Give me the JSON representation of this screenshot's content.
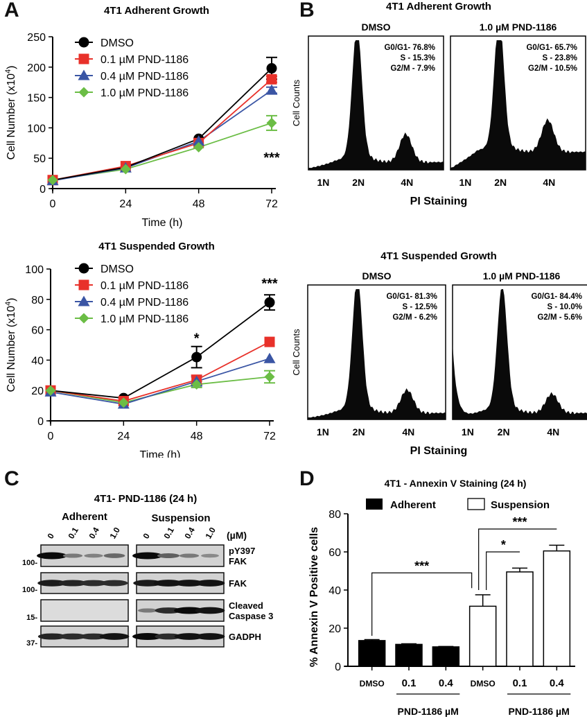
{
  "panels": {
    "A": {
      "letter": "A"
    },
    "B": {
      "letter": "B"
    },
    "C": {
      "letter": "C"
    },
    "D": {
      "letter": "D"
    }
  },
  "chart_data": [
    {
      "id": "A-adherent",
      "type": "line",
      "title": "4T1 Adherent Growth",
      "xlabel": "Time (h)",
      "ylabel": "Cell Number (x10^4)",
      "ylabel_base": "Cell Number (x10",
      "ylabel_exp": "4",
      "ylabel_close": ")",
      "x": [
        0,
        24,
        48,
        72
      ],
      "xticks": [
        "0",
        "24",
        "48",
        "72"
      ],
      "yticks": [
        0,
        50,
        100,
        150,
        200,
        250
      ],
      "ylim": [
        0,
        250
      ],
      "xlim": [
        0,
        72
      ],
      "legend_position": "top-left",
      "series": [
        {
          "name": "DMSO",
          "color": "#000000",
          "marker": "circle",
          "values": [
            14,
            35,
            82,
            198
          ],
          "errors": [
            0,
            0,
            0,
            18
          ]
        },
        {
          "name": "0.1 µM PND-1186",
          "color": "#e8312a",
          "marker": "square",
          "values": [
            14,
            37,
            75,
            180
          ],
          "errors": [
            0,
            0,
            0,
            5
          ]
        },
        {
          "name": "0.4 µM PND-1186",
          "color": "#3a55a4",
          "marker": "triangle",
          "values": [
            13,
            34,
            78,
            162
          ],
          "errors": [
            0,
            0,
            0,
            5
          ]
        },
        {
          "name": "1.0 µM PND-1186",
          "color": "#6bbd45",
          "marker": "diamond",
          "values": [
            14,
            32,
            68,
            108
          ],
          "errors": [
            0,
            0,
            0,
            12
          ]
        }
      ],
      "annotations": [
        {
          "x": 72,
          "text": "***",
          "y": 55
        }
      ]
    },
    {
      "id": "A-suspended",
      "type": "line",
      "title": "4T1 Suspended Growth",
      "xlabel": "Time (h)",
      "ylabel": "Cell Number (x10^4)",
      "ylabel_base": "Cell Number (x10",
      "ylabel_exp": "4",
      "ylabel_close": ")",
      "x": [
        0,
        24,
        48,
        72
      ],
      "xticks": [
        "0",
        "24",
        "48",
        "72"
      ],
      "yticks": [
        0,
        20,
        40,
        60,
        80,
        100
      ],
      "ylim": [
        0,
        100
      ],
      "xlim": [
        0,
        72
      ],
      "legend_position": "top-left",
      "series": [
        {
          "name": "DMSO",
          "color": "#000000",
          "marker": "circle",
          "values": [
            20,
            15,
            42,
            78
          ],
          "errors": [
            0,
            0,
            7,
            5
          ]
        },
        {
          "name": "0.1 µM PND-1186",
          "color": "#e8312a",
          "marker": "square",
          "values": [
            20,
            13,
            27,
            52
          ],
          "errors": [
            0,
            0,
            3,
            0
          ]
        },
        {
          "name": "0.4 µM PND-1186",
          "color": "#3a55a4",
          "marker": "triangle",
          "values": [
            19,
            11,
            26,
            41
          ],
          "errors": [
            0,
            0,
            3,
            0
          ]
        },
        {
          "name": "1.0 µM PND-1186",
          "color": "#6bbd45",
          "marker": "diamond",
          "values": [
            20,
            12,
            24,
            29
          ],
          "errors": [
            0,
            0,
            2,
            4
          ]
        }
      ],
      "annotations": [
        {
          "x": 48,
          "text": "*",
          "y": 56
        },
        {
          "x": 72,
          "text": "***",
          "y": 92
        }
      ]
    },
    {
      "id": "B-adherent",
      "type": "area",
      "title": "4T1 Adherent Growth",
      "xlabel": "PI Staining",
      "ylabel": "Cell Counts",
      "xticks": [
        "1N",
        "2N",
        "4N"
      ],
      "histograms": [
        {
          "label": "DMSO",
          "stats": [
            "G0/G1- 76.8%",
            "S - 15.3%",
            "G2/M -  7.9%"
          ],
          "g0g1": 76.8,
          "s": 15.3,
          "g2m": 7.9,
          "peak2N": 1.0,
          "peak4N": 0.22,
          "baseline": 0.05,
          "low1N": 0.0
        },
        {
          "label": "1.0 µM PND-1186",
          "stats": [
            "G0/G1- 65.7%",
            "S - 23.8%",
            "G2/M - 10.5%"
          ],
          "g0g1": 65.7,
          "s": 23.8,
          "g2m": 10.5,
          "peak2N": 1.0,
          "peak4N": 0.25,
          "baseline": 0.13,
          "low1N": 0.0
        }
      ]
    },
    {
      "id": "B-suspended",
      "type": "area",
      "title": "4T1 Suspended Growth",
      "xlabel": "PI Staining",
      "ylabel": "Cell Counts",
      "xticks": [
        "1N",
        "2N",
        "4N"
      ],
      "histograms": [
        {
          "label": "DMSO",
          "stats": [
            "G0/G1- 81.3%",
            "S - 12.5%",
            "G2/M -  6.2%"
          ],
          "g0g1": 81.3,
          "s": 12.5,
          "g2m": 6.2,
          "peak2N": 1.0,
          "peak4N": 0.18,
          "baseline": 0.04,
          "low1N": 0.0
        },
        {
          "label": "1.0 µM PND-1186",
          "stats": [
            "G0/G1- 84.4%",
            "S - 10.0%",
            "G2/M -  5.6%"
          ],
          "g0g1": 84.4,
          "s": 10.0,
          "g2m": 5.6,
          "peak2N": 0.93,
          "peak4N": 0.15,
          "baseline": 0.04,
          "low1N": 0.58
        }
      ]
    },
    {
      "id": "D",
      "type": "bar",
      "title": "4T1 - Annexin V Staining (24 h)",
      "ylabel": "% Annexin V Positive cells",
      "ylim": [
        0,
        80
      ],
      "yticks": [
        0,
        20,
        40,
        60,
        80
      ],
      "legend_position": "top",
      "legend": [
        {
          "name": "Adherent",
          "fill": "#000000"
        },
        {
          "name": "Suspension",
          "fill": "#ffffff"
        }
      ],
      "categories": [
        "DMSO",
        "0.1",
        "0.4",
        "DMSO",
        "0.1",
        "0.4"
      ],
      "groups": [
        {
          "label": "PND-1186 µM",
          "from": 1,
          "to": 2
        },
        {
          "label": "PND-1186 µM",
          "from": 4,
          "to": 5
        }
      ],
      "series": [
        {
          "name": "Adherent",
          "indices": [
            0,
            1,
            2
          ],
          "values": [
            13.5,
            11.5,
            10.2
          ],
          "errors": [
            0.5,
            0.3,
            0.2
          ]
        },
        {
          "name": "Suspension",
          "indices": [
            3,
            4,
            5
          ],
          "values": [
            31.5,
            49.5,
            60.5
          ],
          "errors": [
            6,
            2,
            3
          ]
        }
      ],
      "significance": [
        {
          "from": 0,
          "to": 3,
          "text": "***",
          "level": 49
        },
        {
          "from": 3,
          "to": 4,
          "text": "*",
          "level": 60
        },
        {
          "from": 3,
          "to": 5,
          "text": "***",
          "level": 72
        }
      ]
    }
  ],
  "blot": {
    "title": "4T1- PND-1186 (24 h)",
    "groups": [
      "Adherent",
      "Suspension"
    ],
    "lanes": [
      "0",
      "0.1",
      "0.4",
      "1.0"
    ],
    "unit": "(µM)",
    "rows": [
      {
        "label": "pY397 FAK",
        "label_lines": [
          "pY397",
          "FAK"
        ],
        "mw": "100-",
        "adherent": [
          1.0,
          0.35,
          0.3,
          0.45
        ],
        "suspension": [
          1.0,
          0.5,
          0.35,
          0.25
        ]
      },
      {
        "label": "FAK",
        "label_lines": [
          "FAK"
        ],
        "mw": "100-",
        "adherent": [
          0.9,
          0.85,
          0.8,
          0.8
        ],
        "suspension": [
          0.9,
          0.95,
          0.95,
          0.95
        ]
      },
      {
        "label": "Cleaved Caspase 3",
        "label_lines": [
          "Cleaved",
          "Caspase 3"
        ],
        "mw": "15-",
        "adherent": [
          0,
          0,
          0,
          0
        ],
        "suspension": [
          0.35,
          0.8,
          1.0,
          0.95
        ]
      },
      {
        "label": "GADPH",
        "label_lines": [
          "GADPH"
        ],
        "mw": "37-",
        "adherent": [
          0.85,
          0.8,
          0.8,
          0.95
        ],
        "suspension": [
          1.0,
          0.8,
          0.95,
          0.95
        ]
      }
    ]
  }
}
